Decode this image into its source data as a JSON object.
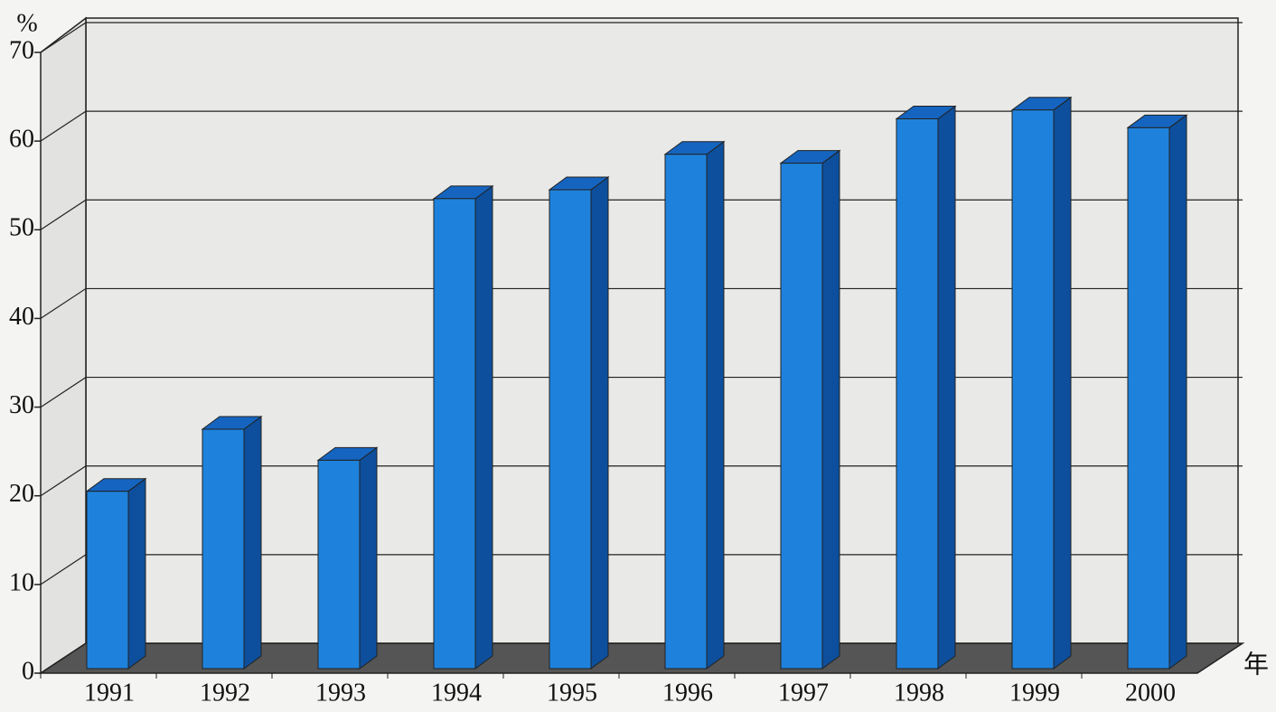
{
  "chart_data": {
    "type": "bar3d",
    "y_unit": "%",
    "x_unit": "年",
    "categories": [
      "1991",
      "1992",
      "1993",
      "1994",
      "1995",
      "1996",
      "1997",
      "1998",
      "1999",
      "2000"
    ],
    "values": [
      20,
      27,
      23.5,
      53,
      54,
      58,
      57,
      62,
      63,
      61
    ],
    "color": "#1e82dc",
    "ylim": [
      0,
      70
    ],
    "yticks": [
      0,
      10,
      20,
      30,
      40,
      50,
      60,
      70
    ],
    "grid": true
  }
}
